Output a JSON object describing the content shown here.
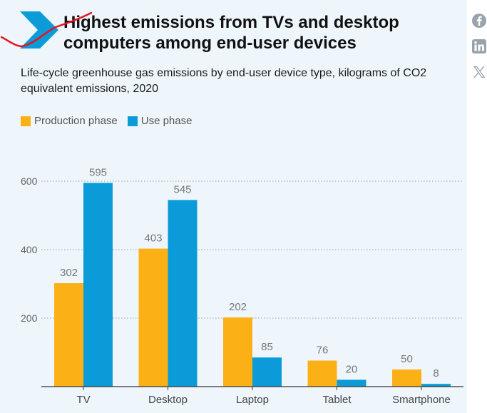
{
  "title": "Highest emissions from TVs and desktop computers among end-user devices",
  "subtitle": "Life-cycle greenhouse gas emissions by end-user device type, kilograms of CO2 equivalent emissions, 2020",
  "colors": {
    "production": "#fbb116",
    "use": "#0b9bd9",
    "brand": "#0b9bd9",
    "scribble": "#e4151f",
    "icon": "#9aa3ab"
  },
  "legend": [
    {
      "label": "Production phase",
      "color": "#fbb116"
    },
    {
      "label": "Use phase",
      "color": "#0b9bd9"
    }
  ],
  "social": [
    {
      "name": "facebook-icon"
    },
    {
      "name": "linkedin-icon"
    },
    {
      "name": "x-icon"
    }
  ],
  "chart_data": {
    "type": "bar",
    "title": "Highest emissions from TVs and desktop computers among end-user devices",
    "subtitle": "Life-cycle greenhouse gas emissions by end-user device type, kilograms of CO2 equivalent emissions, 2020",
    "categories": [
      "TV",
      "Desktop",
      "Laptop",
      "Tablet",
      "Smartphone"
    ],
    "series": [
      {
        "name": "Production phase",
        "values": [
          302,
          403,
          202,
          76,
          50
        ]
      },
      {
        "name": "Use phase",
        "values": [
          595,
          545,
          85,
          20,
          8
        ]
      }
    ],
    "yticks": [
      200,
      400,
      600
    ],
    "ylim": [
      0,
      650
    ],
    "grid": true,
    "legend_position": "top-left"
  }
}
